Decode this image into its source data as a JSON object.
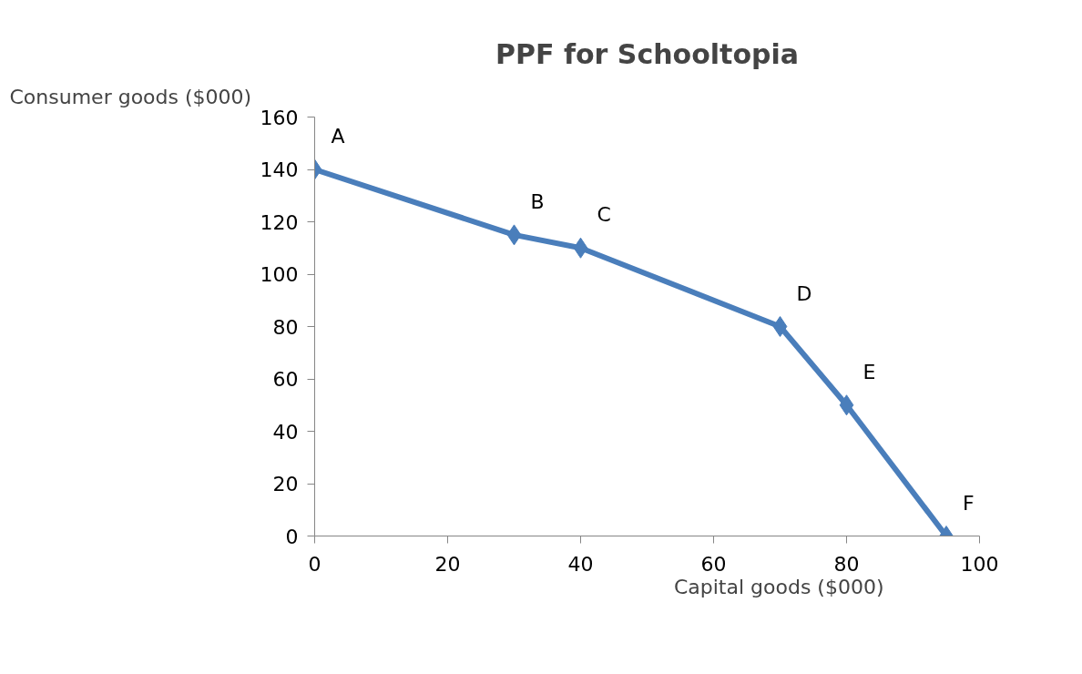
{
  "chart_data": {
    "type": "line",
    "title": "PPF for Schooltopia",
    "xlabel": "Capital goods ($000)",
    "ylabel": "Consumer goods ($000)",
    "x": [
      0,
      30,
      40,
      70,
      80,
      95
    ],
    "series": [
      {
        "color": "#4a7ebb",
        "values": [
          140,
          115,
          110,
          80,
          50,
          0
        ]
      }
    ],
    "xlim": [
      0,
      100
    ],
    "xticks": [
      0,
      20,
      40,
      60,
      80,
      100
    ],
    "ylim": [
      0,
      160
    ],
    "yticks": [
      0,
      20,
      40,
      60,
      80,
      100,
      120,
      140,
      160
    ],
    "grid": false,
    "marker": "diamond",
    "line_style": "solid",
    "annotations": [
      {
        "text": "A",
        "x": 0,
        "y": 140
      },
      {
        "text": "B",
        "x": 30,
        "y": 115
      },
      {
        "text": "C",
        "x": 40,
        "y": 110
      },
      {
        "text": "D",
        "x": 70,
        "y": 80
      },
      {
        "text": "E",
        "x": 80,
        "y": 50
      },
      {
        "text": "F",
        "x": 95,
        "y": 0
      }
    ]
  }
}
